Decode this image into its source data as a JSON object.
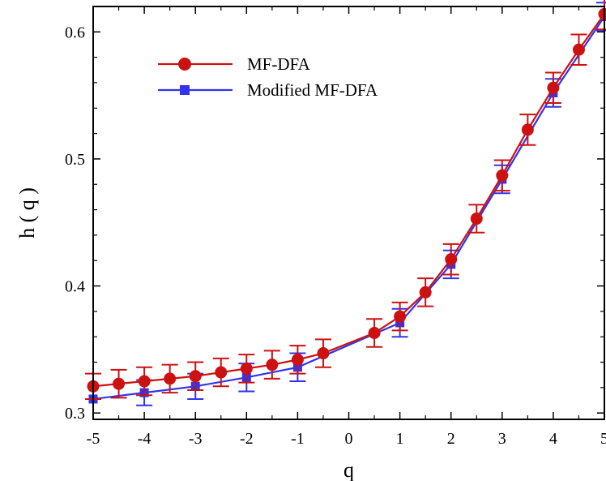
{
  "chart_data": {
    "type": "line",
    "title": "",
    "xlabel": "q",
    "ylabel": "h ( q )",
    "xlim": [
      -5,
      5
    ],
    "ylim": [
      0.295,
      0.62
    ],
    "xticks": [
      -5,
      -4,
      -3,
      -2,
      -1,
      0,
      1,
      2,
      3,
      4,
      5
    ],
    "xtick_labels": [
      "-5",
      "-4",
      "-3",
      "-2",
      "-1",
      "0",
      "1",
      "2",
      "3",
      "4",
      "5"
    ],
    "yticks": [
      0.3,
      0.4,
      0.5,
      0.6
    ],
    "ytick_labels": [
      "0.3",
      "0.4",
      "0.5",
      "0.6"
    ],
    "grid": false,
    "legend_position": "top-left",
    "series": [
      {
        "name": "MF-DFA",
        "color": "#cc1111",
        "marker": "circle",
        "x": [
          -5,
          -4.5,
          -4,
          -3.5,
          -3,
          -2.5,
          -2,
          -1.5,
          -1,
          -0.5,
          0.5,
          1,
          1.5,
          2,
          2.5,
          3,
          3.5,
          4,
          4.5,
          5
        ],
        "y": [
          0.321,
          0.323,
          0.325,
          0.327,
          0.329,
          0.332,
          0.335,
          0.338,
          0.342,
          0.347,
          0.363,
          0.376,
          0.395,
          0.421,
          0.453,
          0.487,
          0.523,
          0.556,
          0.586,
          0.614
        ],
        "err": [
          0.01,
          0.011,
          0.011,
          0.011,
          0.011,
          0.011,
          0.011,
          0.011,
          0.011,
          0.011,
          0.011,
          0.011,
          0.011,
          0.012,
          0.011,
          0.012,
          0.012,
          0.012,
          0.012,
          0.012
        ]
      },
      {
        "name": "Modified MF-DFA",
        "color": "#3333ee",
        "marker": "square",
        "x": [
          -5,
          -4,
          -3,
          -2,
          -1,
          1,
          2,
          3,
          4,
          5
        ],
        "y": [
          0.311,
          0.316,
          0.321,
          0.328,
          0.336,
          0.371,
          0.417,
          0.484,
          0.552,
          0.612
        ],
        "err": [
          0.0,
          0.01,
          0.01,
          0.011,
          0.011,
          0.011,
          0.011,
          0.011,
          0.011,
          0.011
        ]
      }
    ]
  }
}
